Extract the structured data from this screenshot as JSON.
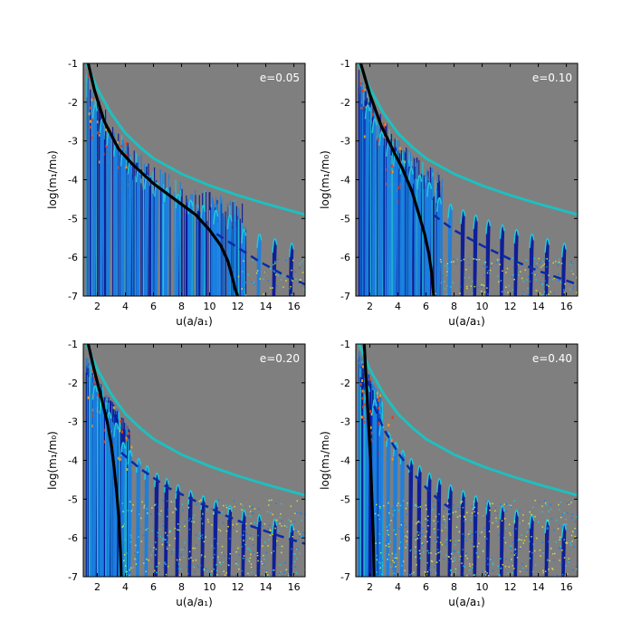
{
  "chart_data": [
    {
      "type": "heatmap",
      "panel_label": "e=0.05",
      "xlabel": "u(a/a₁)",
      "ylabel": "log(m₁/m₀)",
      "xlim": [
        1.0,
        16.8
      ],
      "ylim": [
        -7,
        -1
      ],
      "xticks": [
        2,
        4,
        6,
        8,
        10,
        12,
        14,
        16
      ],
      "yticks": [
        -1,
        -2,
        -3,
        -4,
        -5,
        -6,
        -7
      ],
      "background_color": "#7f7f7f",
      "black_curve": {
        "x": [
          1.35,
          1.8,
          2.5,
          3.5,
          4.5,
          6.0,
          7.5,
          9.0,
          10.0,
          10.8,
          11.3,
          11.6,
          11.8,
          12.0
        ],
        "y": [
          -1.0,
          -1.7,
          -2.5,
          -3.2,
          -3.6,
          -4.1,
          -4.5,
          -4.9,
          -5.3,
          -5.7,
          -6.1,
          -6.5,
          -6.8,
          -7.0
        ]
      },
      "dashed_curve": {
        "x": [
          10.5,
          12,
          13.5,
          15,
          16.8
        ],
        "y": [
          -5.4,
          -5.75,
          -6.1,
          -6.4,
          -6.7
        ]
      },
      "cyan_curve": {
        "x": [
          1.1,
          2,
          3,
          4,
          5,
          6,
          8,
          10,
          12,
          14,
          16.8
        ],
        "y": [
          -0.9,
          -1.65,
          -2.3,
          -2.8,
          -3.15,
          -3.45,
          -3.85,
          -4.15,
          -4.4,
          -4.62,
          -4.9
        ]
      },
      "resonance_streaks_x": [
        1.8,
        2.3,
        2.8,
        3.3,
        3.8,
        4.3,
        4.9,
        5.5,
        6.2,
        6.9,
        7.7,
        8.6,
        9.5,
        10.4,
        11.4,
        12.4,
        13.5,
        14.6,
        15.8
      ]
    },
    {
      "type": "heatmap",
      "panel_label": "e=0.10",
      "xlabel": "u(a/a₁)",
      "ylabel": "log(m₁/m₀)",
      "xlim": [
        1.0,
        16.8
      ],
      "ylim": [
        -7,
        -1
      ],
      "xticks": [
        2,
        4,
        6,
        8,
        10,
        12,
        14,
        16
      ],
      "yticks": [
        -1,
        -2,
        -3,
        -4,
        -5,
        -6,
        -7
      ],
      "background_color": "#7f7f7f",
      "black_curve": {
        "x": [
          1.35,
          2.0,
          2.8,
          3.6,
          4.3,
          5.0,
          5.5,
          5.9,
          6.2,
          6.4,
          6.5,
          6.55
        ],
        "y": [
          -1.0,
          -1.8,
          -2.6,
          -3.2,
          -3.7,
          -4.3,
          -4.9,
          -5.4,
          -5.9,
          -6.4,
          -6.8,
          -7.0
        ]
      },
      "dashed_curve": {
        "x": [
          6.5,
          8,
          10,
          12,
          14,
          16.8
        ],
        "y": [
          -4.9,
          -5.3,
          -5.7,
          -6.05,
          -6.35,
          -6.7
        ]
      },
      "cyan_curve": {
        "x": [
          1.1,
          2,
          3,
          4,
          5,
          6,
          8,
          10,
          12,
          14,
          16.8
        ],
        "y": [
          -0.9,
          -1.65,
          -2.3,
          -2.8,
          -3.15,
          -3.45,
          -3.85,
          -4.15,
          -4.4,
          -4.62,
          -4.9
        ]
      },
      "resonance_streaks_x": [
        1.8,
        2.3,
        2.8,
        3.3,
        3.8,
        4.3,
        4.9,
        5.5,
        6.2,
        6.9,
        7.7,
        8.6,
        9.5,
        10.4,
        11.4,
        12.4,
        13.5,
        14.6,
        15.8
      ]
    },
    {
      "type": "heatmap",
      "panel_label": "e=0.20",
      "xlabel": "u(a/a₁)",
      "ylabel": "log(m₁/m₀)",
      "xlim": [
        1.0,
        16.8
      ],
      "ylim": [
        -7,
        -1
      ],
      "xticks": [
        2,
        4,
        6,
        8,
        10,
        12,
        14,
        16
      ],
      "yticks": [
        -1,
        -2,
        -3,
        -4,
        -5,
        -6,
        -7
      ],
      "background_color": "#7f7f7f",
      "black_curve": {
        "x": [
          1.35,
          1.8,
          2.3,
          2.7,
          3.0,
          3.2,
          3.4,
          3.55,
          3.65,
          3.7
        ],
        "y": [
          -1.0,
          -1.7,
          -2.4,
          -3.0,
          -3.6,
          -4.2,
          -4.9,
          -5.6,
          -6.4,
          -7.0
        ]
      },
      "dashed_curve": {
        "x": [
          3.7,
          5,
          7,
          9,
          11,
          13,
          15,
          16.8
        ],
        "y": [
          -3.8,
          -4.2,
          -4.7,
          -5.05,
          -5.4,
          -5.7,
          -5.95,
          -6.15
        ]
      },
      "cyan_curve": {
        "x": [
          1.1,
          2,
          3,
          4,
          5,
          6,
          8,
          10,
          12,
          14,
          16.8
        ],
        "y": [
          -0.9,
          -1.65,
          -2.3,
          -2.8,
          -3.15,
          -3.45,
          -3.85,
          -4.15,
          -4.4,
          -4.62,
          -4.9
        ]
      },
      "resonance_streaks_x": [
        1.8,
        2.3,
        2.8,
        3.3,
        3.8,
        4.3,
        4.9,
        5.5,
        6.2,
        6.9,
        7.7,
        8.6,
        9.5,
        10.4,
        11.4,
        12.4,
        13.5,
        14.6,
        15.8
      ]
    },
    {
      "type": "heatmap",
      "panel_label": "e=0.40",
      "xlabel": "u(a/a₁)",
      "ylabel": "log(m₁/m₀)",
      "xlim": [
        1.0,
        16.8
      ],
      "ylim": [
        -7,
        -1
      ],
      "xticks": [
        2,
        4,
        6,
        8,
        10,
        12,
        14,
        16
      ],
      "yticks": [
        -1,
        -2,
        -3,
        -4,
        -5,
        -6,
        -7
      ],
      "background_color": "#7f7f7f",
      "black_curve": {
        "x": [
          1.6,
          1.75,
          1.9,
          2.05,
          2.15,
          2.25,
          2.3
        ],
        "y": [
          -1.0,
          -2.0,
          -3.0,
          -4.0,
          -5.0,
          -6.0,
          -7.0
        ]
      },
      "dashed_curve": {
        "x": [
          2.3,
          3,
          4,
          5,
          6,
          7,
          8
        ],
        "y": [
          -2.6,
          -3.2,
          -3.8,
          -4.3,
          -4.7,
          -5.05,
          -5.3
        ]
      },
      "cyan_curve": {
        "x": [
          1.1,
          2,
          3,
          4,
          5,
          6,
          8,
          10,
          12,
          14,
          16.8
        ],
        "y": [
          -0.9,
          -1.65,
          -2.3,
          -2.8,
          -3.15,
          -3.45,
          -3.85,
          -4.15,
          -4.4,
          -4.62,
          -4.9
        ]
      },
      "resonance_streaks_x": [
        1.8,
        2.3,
        2.8,
        3.3,
        3.8,
        4.3,
        4.9,
        5.5,
        6.2,
        6.9,
        7.7,
        8.6,
        9.5,
        10.4,
        11.4,
        12.4,
        13.5,
        14.6,
        15.8
      ]
    }
  ],
  "colors": {
    "background": "#7f7f7f",
    "cyan_curve": "#1fbfbf",
    "black_curve": "#000000",
    "dashed_curve": "#0b2aa8",
    "streak_high": "#0a1a9a",
    "streak_mid": "#1a7fe0",
    "streak_low": "#22c8d8",
    "noise_yellow": "#d8d84a",
    "hot_red": "#e03a1a",
    "hot_orange": "#f09a20"
  }
}
